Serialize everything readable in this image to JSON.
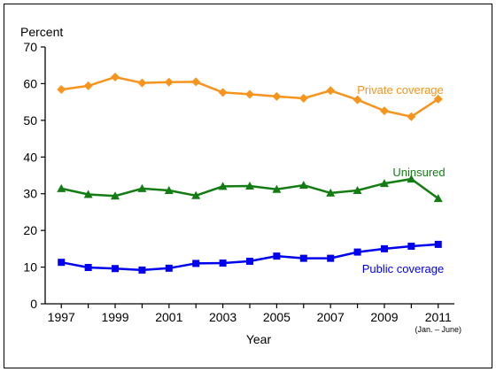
{
  "chart_data": {
    "type": "line",
    "title": "",
    "ylabel": "Percent",
    "xlabel": "Year",
    "ylim": [
      0,
      70
    ],
    "yticks": [
      0,
      10,
      20,
      30,
      40,
      50,
      60,
      70
    ],
    "xticks": [
      "1997",
      "1999",
      "2001",
      "2003",
      "2005",
      "2007",
      "2009",
      "2011"
    ],
    "xtick_note": "(Jan. – June)",
    "grid": false,
    "x": [
      1997,
      1998,
      1999,
      2000,
      2001,
      2002,
      2003,
      2004,
      2005,
      2006,
      2007,
      2008,
      2009,
      2010,
      2011
    ],
    "series": [
      {
        "name": "Private coverage",
        "color": "#f7941d",
        "marker": "diamond",
        "values": [
          58.4,
          59.4,
          61.8,
          60.2,
          60.4,
          60.5,
          57.6,
          57.1,
          56.5,
          56.0,
          58.1,
          55.6,
          52.6,
          51.0,
          55.8
        ]
      },
      {
        "name": "Uninsured",
        "color": "#137d13",
        "marker": "triangle",
        "values": [
          31.4,
          29.8,
          29.4,
          31.4,
          30.9,
          29.5,
          32.0,
          32.1,
          31.2,
          32.3,
          30.2,
          30.9,
          32.8,
          34.0,
          28.7
        ]
      },
      {
        "name": "Public coverage",
        "color": "#0000ee",
        "marker": "square",
        "values": [
          11.3,
          9.9,
          9.6,
          9.2,
          9.7,
          11.0,
          11.1,
          11.6,
          13.0,
          12.4,
          12.4,
          14.1,
          15.0,
          15.7,
          16.2
        ]
      }
    ]
  }
}
